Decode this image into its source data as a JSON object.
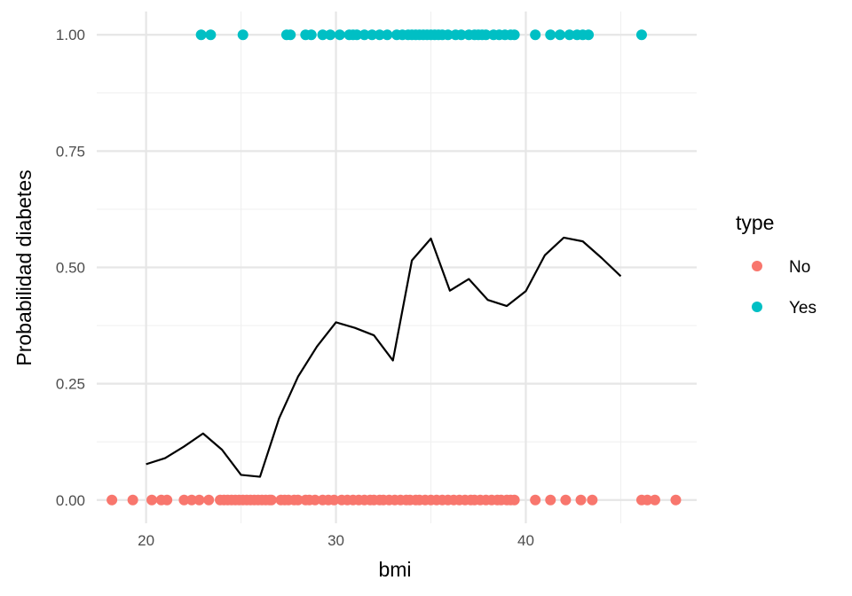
{
  "chart_data": {
    "type": "scatter",
    "title": "",
    "xlabel": "bmi",
    "ylabel": "Probabilidad diabetes",
    "xlim": [
      17.4,
      49.0
    ],
    "ylim": [
      -0.05,
      1.05
    ],
    "x_ticks": [
      20,
      30,
      40
    ],
    "y_ticks": [
      0.0,
      0.25,
      0.5,
      0.75,
      1.0
    ],
    "y_tick_labels": [
      "0.00",
      "0.25",
      "0.50",
      "0.75",
      "1.00"
    ],
    "grid": true,
    "legend": {
      "title": "type",
      "position": "right",
      "entries": [
        {
          "label": "No",
          "color": "#F8766D"
        },
        {
          "label": "Yes",
          "color": "#00BFC4"
        }
      ]
    },
    "series": [
      {
        "name": "No",
        "kind": "points",
        "color": "#F8766D",
        "y": 0,
        "x": [
          18.2,
          19.3,
          20.3,
          20.8,
          21.1,
          22.0,
          22.4,
          22.8,
          23.3,
          23.9,
          24.1,
          24.3,
          24.5,
          24.7,
          24.9,
          25.1,
          25.3,
          25.5,
          25.7,
          25.9,
          26.1,
          26.3,
          26.5,
          26.6,
          27.1,
          27.3,
          27.5,
          27.8,
          28.0,
          28.4,
          28.6,
          28.9,
          29.3,
          29.6,
          29.9,
          30.3,
          30.6,
          30.9,
          31.2,
          31.5,
          31.8,
          32.0,
          32.3,
          32.5,
          32.8,
          33.1,
          33.4,
          33.7,
          33.9,
          34.2,
          34.4,
          34.7,
          35.0,
          35.3,
          35.6,
          35.9,
          36.2,
          36.5,
          36.8,
          37.1,
          37.3,
          37.6,
          37.9,
          38.2,
          38.5,
          38.7,
          39.0,
          39.2,
          39.4,
          40.5,
          41.3,
          42.1,
          42.9,
          43.5,
          46.1,
          46.4,
          46.8,
          47.9
        ]
      },
      {
        "name": "Yes",
        "kind": "points",
        "color": "#00BFC4",
        "y": 1,
        "x": [
          22.9,
          23.4,
          25.1,
          27.4,
          27.6,
          28.4,
          28.7,
          29.3,
          29.7,
          30.2,
          30.7,
          30.9,
          31.1,
          31.5,
          31.9,
          32.3,
          32.7,
          33.2,
          33.5,
          33.8,
          34.0,
          34.2,
          34.4,
          34.6,
          34.8,
          35.0,
          35.2,
          35.4,
          35.6,
          35.9,
          36.3,
          36.6,
          37.0,
          37.3,
          37.5,
          37.7,
          37.9,
          38.3,
          38.6,
          38.9,
          39.2,
          39.4,
          40.5,
          41.3,
          41.8,
          42.3,
          42.7,
          43.0,
          43.3,
          46.1
        ]
      },
      {
        "name": "",
        "kind": "line",
        "color": "#000000",
        "x": [
          20,
          21,
          22,
          23,
          24,
          25,
          26,
          27,
          28,
          29,
          30,
          31,
          32,
          33,
          34,
          35,
          36,
          37,
          38,
          39,
          40,
          41,
          42,
          43,
          44,
          45
        ],
        "y": [
          0.077,
          0.09,
          0.115,
          0.143,
          0.108,
          0.054,
          0.05,
          0.175,
          0.265,
          0.33,
          0.382,
          0.37,
          0.354,
          0.3,
          0.515,
          0.562,
          0.45,
          0.475,
          0.43,
          0.417,
          0.449,
          0.526,
          0.564,
          0.556,
          0.52,
          0.481
        ]
      }
    ]
  }
}
